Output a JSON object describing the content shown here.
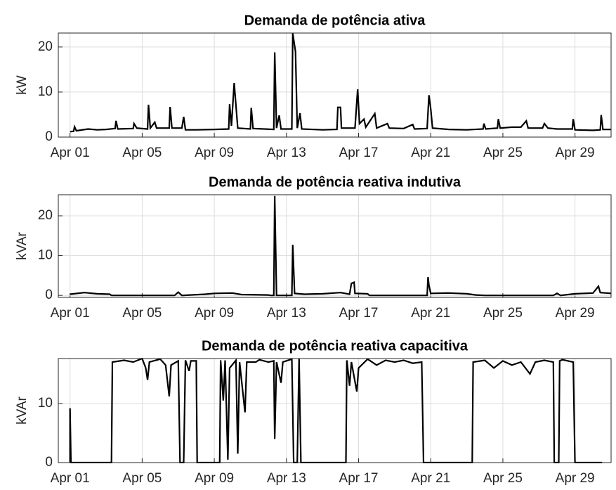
{
  "chart_data": [
    {
      "type": "line",
      "title": "Demanda de potência ativa",
      "y_label": "kW",
      "color": "#000000",
      "grid": true,
      "xlim": [
        0.35,
        31
      ],
      "ylim": [
        0,
        23.1
      ],
      "xticks": [
        {
          "value": 1,
          "label": "Apr 01"
        },
        {
          "value": 5,
          "label": "Apr 05"
        },
        {
          "value": 9,
          "label": "Apr 09"
        },
        {
          "value": 13,
          "label": "Apr 13"
        },
        {
          "value": 17,
          "label": "Apr 17"
        },
        {
          "value": 21,
          "label": "Apr 21"
        },
        {
          "value": 25,
          "label": "Apr 25"
        },
        {
          "value": 29,
          "label": "Apr 29"
        }
      ],
      "yticks": [
        0,
        10,
        20
      ],
      "x": [
        1,
        1.2,
        1.25,
        1.35,
        2,
        2.5,
        3,
        3.5,
        3.55,
        3.65,
        4.5,
        4.55,
        4.7,
        5.3,
        5.35,
        5.45,
        5.7,
        5.8,
        6.5,
        6.55,
        6.65,
        7.2,
        7.3,
        7.4,
        8,
        9,
        9.8,
        9.85,
        9.95,
        10.1,
        10.3,
        11,
        11.05,
        11.15,
        12.3,
        12.35,
        12.45,
        12.6,
        12.7,
        13.3,
        13.35,
        13.5,
        13.6,
        13.75,
        13.85,
        15,
        15.8,
        15.85,
        16,
        16.05,
        16.8,
        16.85,
        16.95,
        17.05,
        17.3,
        17.4,
        17.9,
        18,
        18.6,
        18.7,
        19.5,
        20,
        20.1,
        20.8,
        20.9,
        21,
        21.1,
        22,
        23,
        23.9,
        23.95,
        24.05,
        24.7,
        24.75,
        24.85,
        25.5,
        26,
        26.3,
        26.4,
        27.2,
        27.3,
        27.5,
        28,
        28.85,
        28.9,
        29,
        30,
        30.4,
        30.45,
        30.55,
        31
      ],
      "values": [
        1.2,
        1.3,
        2.3,
        1.4,
        1.8,
        1.6,
        1.7,
        1.9,
        3.6,
        1.8,
        1.9,
        3,
        2,
        1.8,
        7.2,
        2,
        3.3,
        2,
        2,
        6.7,
        2,
        2,
        4.5,
        1.6,
        1.6,
        1.7,
        1.8,
        7.3,
        2.5,
        12,
        2,
        1.8,
        6.5,
        1.9,
        1.7,
        18.8,
        2,
        4.8,
        1.8,
        1.8,
        23,
        19,
        2,
        5.3,
        1.8,
        1.6,
        1.7,
        6.6,
        6.6,
        2,
        2,
        5,
        10.6,
        3,
        4,
        2.2,
        5.2,
        2,
        3,
        2,
        1.9,
        2.8,
        1.8,
        1.9,
        9.3,
        6.3,
        2,
        1.7,
        1.6,
        1.8,
        3,
        1.8,
        2,
        4,
        2,
        2.2,
        2.2,
        3.6,
        2,
        2,
        3,
        2,
        1.8,
        1.8,
        4,
        1.6,
        1.5,
        1.6,
        4.9,
        1.7,
        1.7
      ]
    },
    {
      "type": "line",
      "title": "Demanda de potência reativa indutiva",
      "y_label": "kVAr",
      "color": "#000000",
      "grid": true,
      "xlim": [
        0.35,
        31
      ],
      "ylim": [
        -0.5,
        25.3
      ],
      "xticks": [
        {
          "value": 1,
          "label": "Apr 01"
        },
        {
          "value": 5,
          "label": "Apr 05"
        },
        {
          "value": 9,
          "label": "Apr 09"
        },
        {
          "value": 13,
          "label": "Apr 13"
        },
        {
          "value": 17,
          "label": "Apr 17"
        },
        {
          "value": 21,
          "label": "Apr 21"
        },
        {
          "value": 25,
          "label": "Apr 25"
        },
        {
          "value": 29,
          "label": "Apr 29"
        }
      ],
      "yticks": [
        0,
        10,
        20
      ],
      "x": [
        1,
        1.8,
        2.5,
        3.2,
        3.3,
        6.8,
        7,
        7.2,
        8.5,
        9,
        10,
        10.5,
        12,
        12.1,
        12.3,
        12.35,
        12.45,
        13.3,
        13.35,
        13.45,
        14,
        15,
        16,
        16.5,
        16.6,
        16.75,
        16.8,
        17.5,
        17.6,
        20.8,
        20.85,
        20.9,
        21,
        22,
        23,
        23.5,
        24,
        27.8,
        28,
        28.2,
        29,
        30,
        30.3,
        30.4,
        31
      ],
      "values": [
        0.3,
        0.7,
        0.4,
        0.3,
        0,
        0,
        0.8,
        0,
        0.3,
        0.5,
        0.6,
        0.2,
        0.1,
        0,
        0,
        25,
        0,
        0,
        12.7,
        0.5,
        0.3,
        0.4,
        0.7,
        0.3,
        3,
        3.3,
        0.5,
        0.4,
        0,
        0,
        4.6,
        2.5,
        0.5,
        0.6,
        0.4,
        0.1,
        0,
        0,
        0.5,
        0,
        0.4,
        0.6,
        2.3,
        0.7,
        0.5
      ]
    },
    {
      "type": "line",
      "title": "Demanda de potência reativa capacitiva",
      "y_label": "kVAr",
      "color": "#000000",
      "grid": true,
      "xlim": [
        0.35,
        31
      ],
      "ylim": [
        0,
        17.6
      ],
      "xticks": [
        {
          "value": 1,
          "label": "Apr 01"
        },
        {
          "value": 5,
          "label": "Apr 05"
        },
        {
          "value": 9,
          "label": "Apr 09"
        },
        {
          "value": 13,
          "label": "Apr 13"
        },
        {
          "value": 17,
          "label": "Apr 17"
        },
        {
          "value": 21,
          "label": "Apr 21"
        },
        {
          "value": 25,
          "label": "Apr 25"
        },
        {
          "value": 29,
          "label": "Apr 29"
        }
      ],
      "yticks": [
        0,
        10
      ],
      "x": [
        1,
        1,
        1.05,
        3.3,
        3.35,
        4,
        4.5,
        5,
        5.2,
        5.3,
        5.4,
        6,
        6.3,
        6.5,
        6.6,
        7,
        7.1,
        7.3,
        7.4,
        7.6,
        7.7,
        8,
        8.05,
        9.3,
        9.35,
        9.5,
        9.6,
        9.75,
        9.85,
        10.2,
        10.3,
        10.4,
        10.7,
        10.8,
        11.3,
        11.5,
        12,
        12.3,
        12.35,
        12.45,
        12.7,
        12.8,
        13.3,
        13.4,
        13.6,
        13.7,
        13.8,
        16.3,
        16.35,
        16.5,
        16.6,
        16.9,
        17,
        17.5,
        18,
        18.5,
        19,
        19.5,
        20,
        20.5,
        20.6,
        23.3,
        23.35,
        24,
        24.5,
        25,
        25.5,
        26,
        26.5,
        26.8,
        27.3,
        27.8,
        27.85,
        28.1,
        28.15,
        28.3,
        28.9,
        29,
        30.5
      ],
      "values": [
        0,
        9.2,
        0,
        0,
        17,
        17.3,
        17,
        17.6,
        16,
        14,
        17,
        17.5,
        16.5,
        11.2,
        16.5,
        17.2,
        0,
        0,
        17.3,
        15.5,
        17.2,
        17.2,
        0,
        0,
        17.3,
        10.5,
        17.3,
        0.5,
        16,
        17.3,
        1.5,
        17,
        8.5,
        17,
        17,
        17.4,
        17,
        17.2,
        4,
        17,
        13.5,
        17,
        17.5,
        0,
        0,
        17.6,
        0,
        0,
        17.3,
        13,
        17,
        12,
        16,
        17.5,
        16.5,
        17.3,
        17,
        17.3,
        16.8,
        17,
        0,
        0,
        17,
        17.3,
        16,
        17.2,
        16.5,
        17,
        15,
        17,
        17.3,
        17,
        0,
        0,
        17.2,
        17.4,
        17,
        0,
        0
      ]
    }
  ]
}
